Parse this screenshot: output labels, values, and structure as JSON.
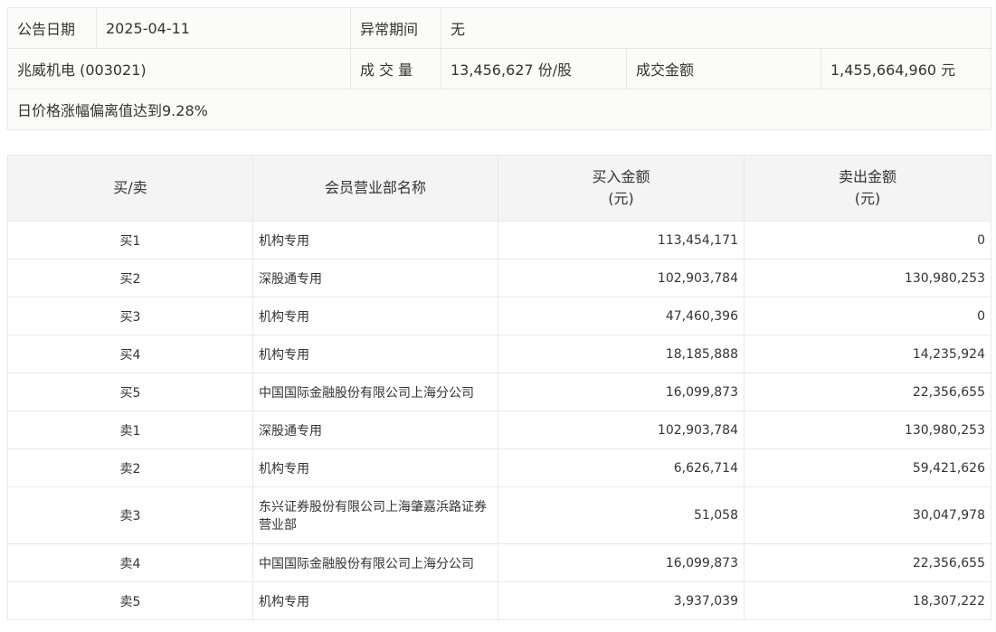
{
  "info": {
    "date_label": "公告日期",
    "date_value": "2025-04-11",
    "period_label": "异常期间",
    "period_value": "无",
    "stock": "兆威机电 (003021)",
    "volume_label": "成 交 量",
    "volume_value": "13,456,627 份/股",
    "amount_label": "成交金额",
    "amount_value": "1,455,664,960 元",
    "reason": "日价格涨幅偏离值达到9.28%"
  },
  "table": {
    "headers": [
      "买/卖",
      "会员营业部名称",
      "买入金额\n(元)",
      "卖出金额\n(元)"
    ],
    "rows": [
      [
        "买1",
        "机构专用",
        "113,454,171",
        "0"
      ],
      [
        "买2",
        "深股通专用",
        "102,903,784",
        "130,980,253"
      ],
      [
        "买3",
        "机构专用",
        "47,460,396",
        "0"
      ],
      [
        "买4",
        "机构专用",
        "18,185,888",
        "14,235,924"
      ],
      [
        "买5",
        "中国国际金融股份有限公司上海分公司",
        "16,099,873",
        "22,356,655"
      ],
      [
        "卖1",
        "深股通专用",
        "102,903,784",
        "130,980,253"
      ],
      [
        "卖2",
        "机构专用",
        "6,626,714",
        "59,421,626"
      ],
      [
        "卖3",
        "东兴证券股份有限公司上海肇嘉浜路证券营业部",
        "51,058",
        "30,047,978"
      ],
      [
        "卖4",
        "中国国际金融股份有限公司上海分公司",
        "16,099,873",
        "22,356,655"
      ],
      [
        "卖5",
        "机构专用",
        "3,937,039",
        "18,307,222"
      ]
    ]
  }
}
